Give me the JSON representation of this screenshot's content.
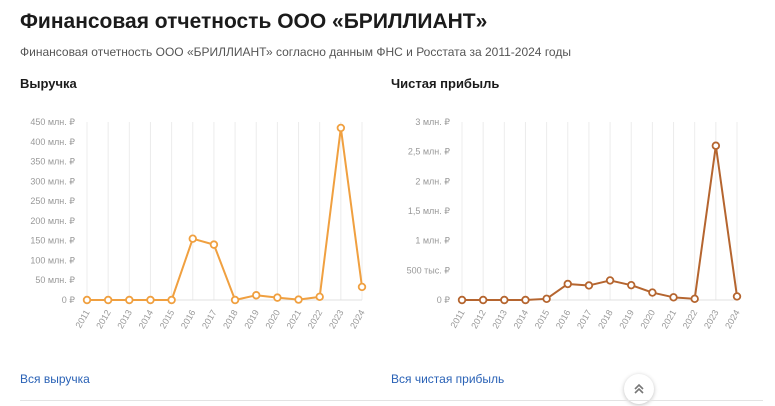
{
  "header": {
    "title": "Финансовая отчетность ООО «БРИЛЛИАНТ»",
    "subtitle": "Финансовая отчетность ООО «БРИЛЛИАНТ» согласно данным ФНС и Росстата за 2011-2024 годы"
  },
  "revenue_section": {
    "title": "Выручка",
    "link": "Вся выручка"
  },
  "profit_section": {
    "title": "Чистая прибыль",
    "link": "Вся чистая прибыль"
  },
  "icons": {
    "scroll_top": "double-chevron-up-icon"
  },
  "colors": {
    "revenue": "#f0a040",
    "profit": "#b5652f",
    "link": "#2a62b6"
  },
  "chart_data": [
    {
      "type": "line",
      "title": "Выручка",
      "categories": [
        "2011",
        "2012",
        "2013",
        "2014",
        "2015",
        "2016",
        "2017",
        "2018",
        "2019",
        "2020",
        "2021",
        "2022",
        "2023",
        "2024"
      ],
      "values": [
        0,
        0,
        0,
        0,
        0,
        155,
        140,
        0,
        12,
        6,
        1,
        8,
        435,
        33
      ],
      "unit": "млн. ₽",
      "ylim": [
        0,
        450
      ],
      "yticks": [
        0,
        50,
        100,
        150,
        200,
        250,
        300,
        350,
        400,
        450
      ],
      "ytick_labels": [
        "0 ₽",
        "50 млн. ₽",
        "100 млн. ₽",
        "150 млн. ₽",
        "200 млн. ₽",
        "250 млн. ₽",
        "300 млн. ₽",
        "350 млн. ₽",
        "400 млн. ₽",
        "450 млн. ₽"
      ],
      "grid": "vertical",
      "color": "#f0a040"
    },
    {
      "type": "line",
      "title": "Чистая прибыль",
      "categories": [
        "2011",
        "2012",
        "2013",
        "2014",
        "2015",
        "2016",
        "2017",
        "2018",
        "2019",
        "2020",
        "2021",
        "2022",
        "2023",
        "2024"
      ],
      "values": [
        0,
        0,
        0,
        0,
        20,
        270,
        245,
        330,
        250,
        125,
        45,
        20,
        2600,
        60
      ],
      "unit": "тыс. ₽",
      "ylim": [
        0,
        3000
      ],
      "yticks": [
        0,
        500,
        1000,
        1500,
        2000,
        2500,
        3000
      ],
      "ytick_labels": [
        "0 ₽",
        "500 тыс. ₽",
        "1 млн. ₽",
        "1,5 млн. ₽",
        "2 млн. ₽",
        "2,5 млн. ₽",
        "3 млн. ₽"
      ],
      "grid": "vertical",
      "color": "#b5652f"
    }
  ]
}
